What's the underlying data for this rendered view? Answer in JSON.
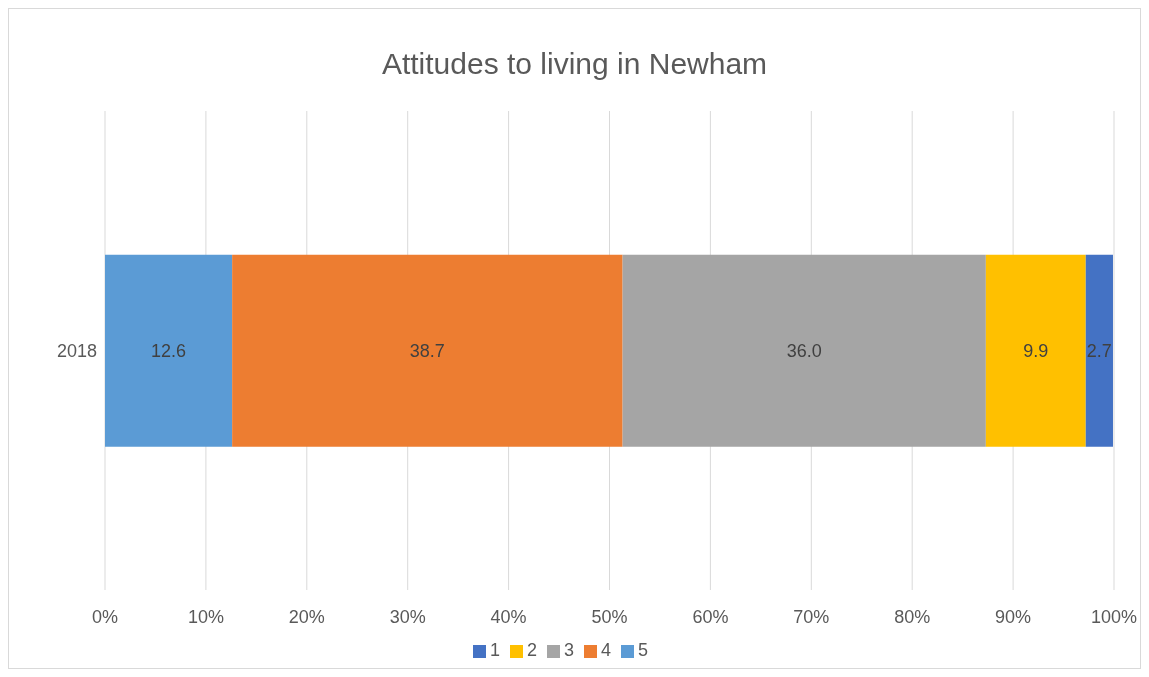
{
  "chart_data": {
    "type": "bar",
    "orientation": "horizontal",
    "stacked": true,
    "title": "Attitudes to living in Newham",
    "categories": [
      "2018"
    ],
    "series": [
      {
        "name": "5",
        "color": "#5b9bd5",
        "values": [
          12.6
        ],
        "value_labels": [
          "12.6"
        ]
      },
      {
        "name": "4",
        "color": "#ed7d31",
        "values": [
          38.7
        ],
        "value_labels": [
          "38.7"
        ]
      },
      {
        "name": "3",
        "color": "#a5a5a5",
        "values": [
          36.0
        ],
        "value_labels": [
          "36.0"
        ]
      },
      {
        "name": "2",
        "color": "#ffc000",
        "values": [
          9.9
        ],
        "value_labels": [
          "9.9"
        ]
      },
      {
        "name": "1",
        "color": "#4472c4",
        "values": [
          2.7
        ],
        "value_labels": [
          "2.7"
        ]
      }
    ],
    "xlim": [
      0,
      100
    ],
    "xticks": [
      {
        "value": 0,
        "label": "0%"
      },
      {
        "value": 10,
        "label": "10%"
      },
      {
        "value": 20,
        "label": "20%"
      },
      {
        "value": 30,
        "label": "30%"
      },
      {
        "value": 40,
        "label": "40%"
      },
      {
        "value": 50,
        "label": "50%"
      },
      {
        "value": 60,
        "label": "60%"
      },
      {
        "value": 70,
        "label": "70%"
      },
      {
        "value": 80,
        "label": "80%"
      },
      {
        "value": 90,
        "label": "90%"
      },
      {
        "value": 100,
        "label": "100%"
      }
    ],
    "grid": "x",
    "legend": "bottom"
  }
}
